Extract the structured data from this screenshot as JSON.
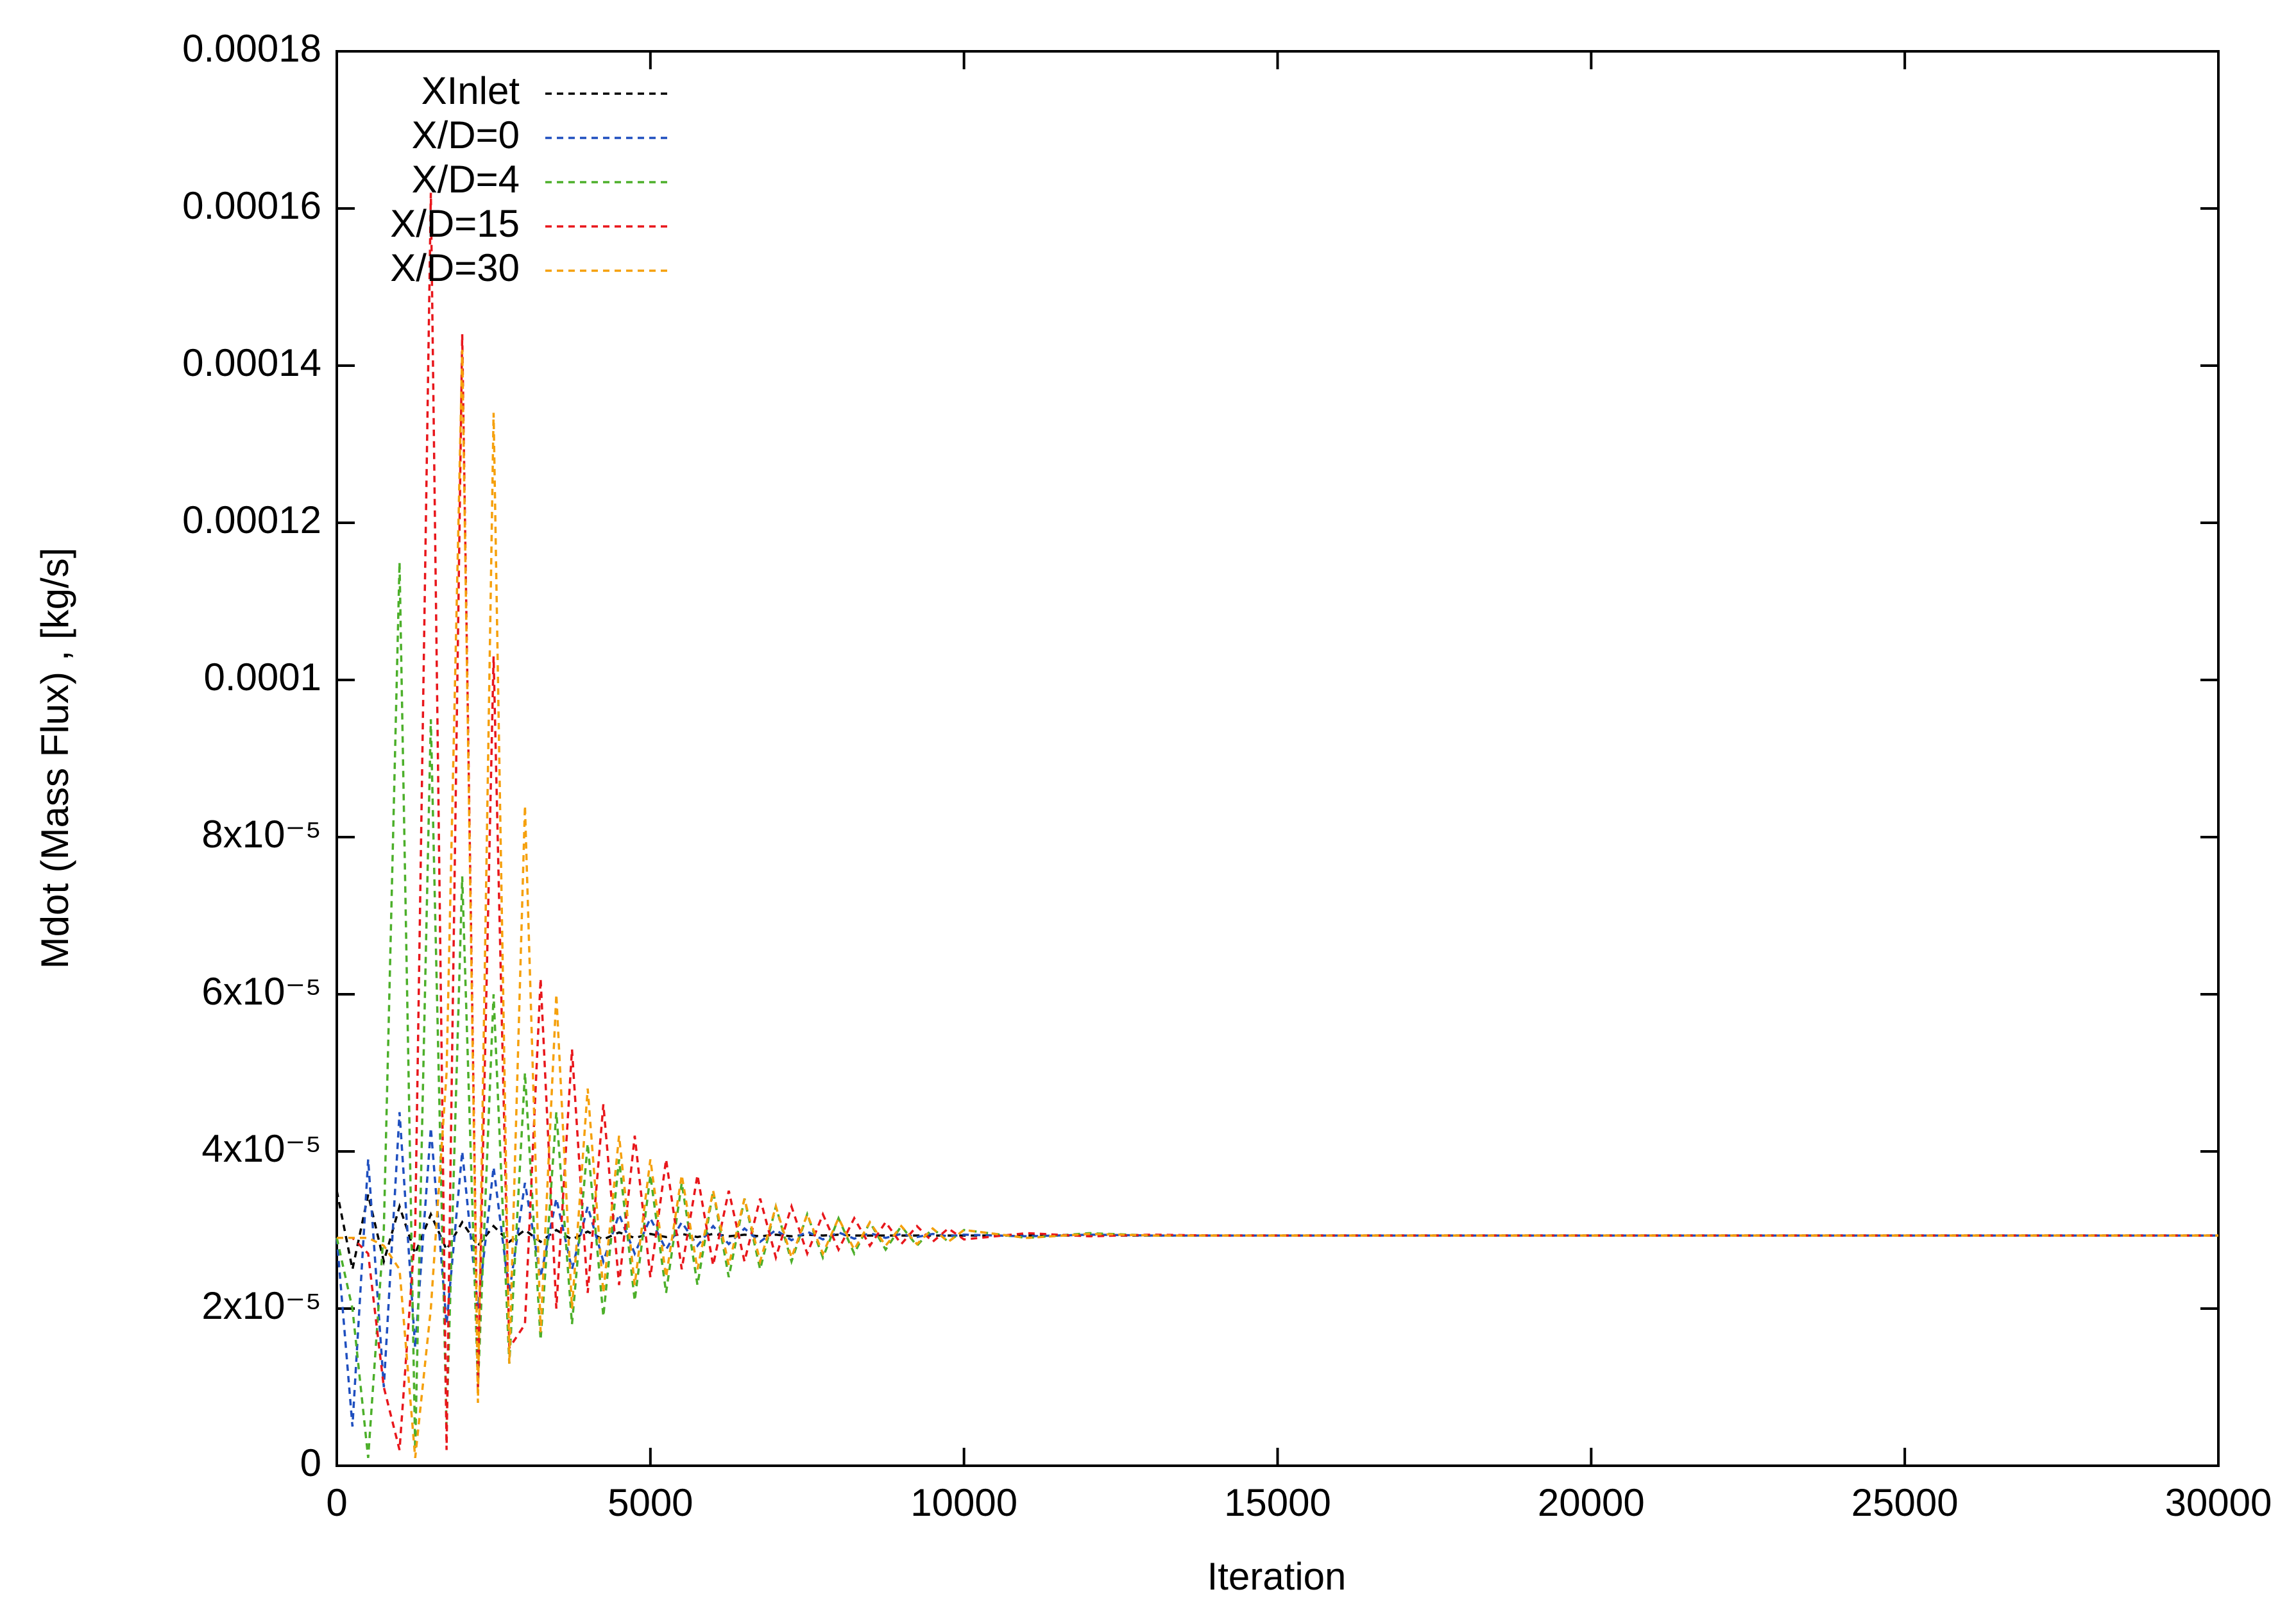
{
  "chart_data": {
    "type": "line",
    "x_label": "Iteration",
    "y_label": "Mdot (Mass Flux) , [kg/s]",
    "legend": "top left",
    "xlim": [
      0,
      30000
    ],
    "xticks": [
      0,
      5000,
      10000,
      15000,
      20000,
      25000,
      30000
    ],
    "ylim": [
      0,
      0.00018
    ],
    "yticks": [
      0,
      {
        "value": 2e-05,
        "label": "2x10⁻⁵"
      },
      {
        "value": 4e-05,
        "label": "4x10⁻⁵"
      },
      {
        "value": 6e-05,
        "label": "6x10⁻⁵"
      },
      {
        "value": 8e-05,
        "label": "8x10⁻⁵"
      },
      0.0001,
      0.00012,
      0.00014,
      0.00016,
      0.00018
    ],
    "x": [
      0,
      250,
      500,
      750,
      1000,
      1250,
      1500,
      1750,
      2000,
      2250,
      2500,
      2750,
      3000,
      3250,
      3500,
      3750,
      4000,
      4250,
      4500,
      4750,
      5000,
      5250,
      5500,
      5750,
      6000,
      6250,
      6500,
      6750,
      7000,
      7250,
      7500,
      7750,
      8000,
      8250,
      8500,
      8750,
      9000,
      9250,
      9500,
      9750,
      10000,
      11000,
      12000,
      13000,
      14000,
      15000,
      16000,
      17000,
      18000,
      19000,
      20000,
      21000,
      22000,
      23000,
      24000,
      25000,
      26000,
      27000,
      28000,
      29000,
      30000
    ],
    "series": [
      {
        "name": "XInlet",
        "color": "#000000",
        "values": [
          3.5e-05,
          2.5e-05,
          3.45e-05,
          2.6e-05,
          3.3e-05,
          2.7e-05,
          3.2e-05,
          2.75e-05,
          3.1e-05,
          2.8e-05,
          3.05e-05,
          2.85e-05,
          3e-05,
          2.85e-05,
          3e-05,
          2.88e-05,
          2.98e-05,
          2.88e-05,
          2.97e-05,
          2.9e-05,
          2.95e-05,
          2.91e-05,
          2.95e-05,
          2.91e-05,
          2.95e-05,
          2.92e-05,
          2.94e-05,
          2.92e-05,
          2.94e-05,
          2.92e-05,
          2.94e-05,
          2.93e-05,
          2.94e-05,
          2.93e-05,
          2.93e-05,
          2.93e-05,
          2.93e-05,
          2.93e-05,
          2.93e-05,
          2.93e-05,
          2.93e-05,
          2.93e-05,
          2.93e-05,
          2.93e-05,
          2.93e-05,
          2.93e-05,
          2.93e-05,
          2.93e-05,
          2.93e-05,
          2.93e-05,
          2.93e-05,
          2.93e-05,
          2.93e-05,
          2.93e-05,
          2.93e-05,
          2.93e-05,
          2.93e-05,
          2.93e-05,
          2.93e-05,
          2.93e-05,
          2.93e-05
        ]
      },
      {
        "name": "X/D=0",
        "color": "#1f4fbf",
        "values": [
          2.9e-05,
          5e-06,
          3.9e-05,
          1e-05,
          4.5e-05,
          1.5e-05,
          4.3e-05,
          1.8e-05,
          4e-05,
          2e-05,
          3.8e-05,
          2.2e-05,
          3.6e-05,
          2.4e-05,
          3.4e-05,
          2.5e-05,
          3.3e-05,
          2.6e-05,
          3.2e-05,
          2.7e-05,
          3.15e-05,
          2.75e-05,
          3.1e-05,
          2.8e-05,
          3.05e-05,
          2.82e-05,
          3.02e-05,
          2.85e-05,
          3e-05,
          2.87e-05,
          2.98e-05,
          2.88e-05,
          2.97e-05,
          2.89e-05,
          2.96e-05,
          2.9e-05,
          2.95e-05,
          2.91e-05,
          2.95e-05,
          2.92e-05,
          2.94e-05,
          2.92e-05,
          2.94e-05,
          2.93e-05,
          2.93e-05,
          2.93e-05,
          2.93e-05,
          2.93e-05,
          2.93e-05,
          2.93e-05,
          2.93e-05,
          2.93e-05,
          2.93e-05,
          2.93e-05,
          2.93e-05,
          2.93e-05,
          2.93e-05,
          2.93e-05,
          2.93e-05,
          2.93e-05,
          2.93e-05
        ]
      },
      {
        "name": "X/D=4",
        "color": "#4caf2a",
        "values": [
          2.9e-05,
          2e-05,
          1e-06,
          3e-05,
          0.000115,
          2e-06,
          9.5e-05,
          5e-06,
          7.5e-05,
          1e-05,
          6e-05,
          1.3e-05,
          5e-05,
          1.6e-05,
          4.5e-05,
          1.8e-05,
          4.1e-05,
          1.9e-05,
          3.9e-05,
          2.1e-05,
          3.7e-05,
          2.2e-05,
          3.6e-05,
          2.3e-05,
          3.5e-05,
          2.4e-05,
          3.4e-05,
          2.5e-05,
          3.3e-05,
          2.6e-05,
          3.2e-05,
          2.65e-05,
          3.15e-05,
          2.7e-05,
          3.1e-05,
          2.75e-05,
          3.05e-05,
          2.8e-05,
          3.02e-05,
          2.85e-05,
          3e-05,
          2.9e-05,
          2.96e-05,
          2.93e-05,
          2.93e-05,
          2.93e-05,
          2.93e-05,
          2.93e-05,
          2.93e-05,
          2.93e-05,
          2.93e-05,
          2.93e-05,
          2.93e-05,
          2.93e-05,
          2.93e-05,
          2.93e-05,
          2.93e-05,
          2.93e-05,
          2.93e-05,
          2.93e-05,
          2.93e-05
        ]
      },
      {
        "name": "X/D=15",
        "color": "#e8161b",
        "values": [
          2.9e-05,
          2.9e-05,
          2.7e-05,
          1e-05,
          2e-06,
          3e-05,
          0.000162,
          2e-06,
          0.000144,
          1e-05,
          0.000103,
          1.5e-05,
          1.8e-05,
          6.2e-05,
          2e-05,
          5.3e-05,
          2.2e-05,
          4.6e-05,
          2.3e-05,
          4.2e-05,
          2.4e-05,
          3.9e-05,
          2.5e-05,
          3.7e-05,
          2.55e-05,
          3.5e-05,
          2.6e-05,
          3.4e-05,
          2.65e-05,
          3.3e-05,
          2.7e-05,
          3.2e-05,
          2.75e-05,
          3.15e-05,
          2.8e-05,
          3.1e-05,
          2.82e-05,
          3.05e-05,
          2.85e-05,
          3.02e-05,
          2.88e-05,
          2.96e-05,
          2.92e-05,
          2.94e-05,
          2.93e-05,
          2.93e-05,
          2.93e-05,
          2.93e-05,
          2.93e-05,
          2.93e-05,
          2.93e-05,
          2.93e-05,
          2.93e-05,
          2.93e-05,
          2.93e-05,
          2.93e-05,
          2.93e-05,
          2.93e-05,
          2.93e-05,
          2.93e-05,
          2.93e-05
        ]
      },
      {
        "name": "X/D=30",
        "color": "#f5a00c",
        "values": [
          2.9e-05,
          2.9e-05,
          2.9e-05,
          2.8e-05,
          2.5e-05,
          1e-06,
          2e-05,
          5e-05,
          0.000142,
          8e-06,
          0.000134,
          1.3e-05,
          8.4e-05,
          1.7e-05,
          6e-05,
          2e-05,
          4.8e-05,
          2.2e-05,
          4.2e-05,
          2.3e-05,
          3.9e-05,
          2.4e-05,
          3.7e-05,
          2.5e-05,
          3.5e-05,
          2.55e-05,
          3.4e-05,
          2.6e-05,
          3.3e-05,
          2.65e-05,
          3.2e-05,
          2.7e-05,
          3.15e-05,
          2.75e-05,
          3.1e-05,
          2.8e-05,
          3.05e-05,
          2.82e-05,
          3.02e-05,
          2.85e-05,
          3e-05,
          2.9e-05,
          2.95e-05,
          2.93e-05,
          2.93e-05,
          2.93e-05,
          2.93e-05,
          2.93e-05,
          2.93e-05,
          2.93e-05,
          2.93e-05,
          2.93e-05,
          2.93e-05,
          2.93e-05,
          2.93e-05,
          2.93e-05,
          2.93e-05,
          2.93e-05,
          2.93e-05,
          2.93e-05,
          2.93e-05
        ]
      }
    ]
  }
}
